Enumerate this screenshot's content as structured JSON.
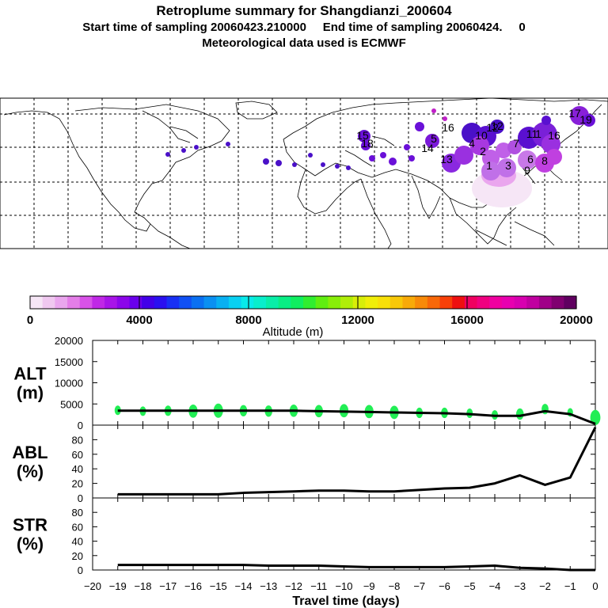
{
  "header": {
    "title": "Retroplume summary for Shangdianzi_200604",
    "sampling_line": "Start time of sampling 20060423.210000     End time of sampling 20060424.     0",
    "met_line": "Meteorological data used is ECMWF"
  },
  "colorbar": {
    "title": "Altitude (m)",
    "tick_labels": [
      "0",
      "4000",
      "8000",
      "12000",
      "16000",
      "20000"
    ],
    "colors": [
      "#f6e6f6",
      "#f0c8f0",
      "#eaa6ee",
      "#e47ee8",
      "#d852e8",
      "#c028e6",
      "#a814e8",
      "#8c06ea",
      "#6a00ec",
      "#4200e8",
      "#2a10f0",
      "#1830f4",
      "#1050f4",
      "#0a70f2",
      "#0a90f2",
      "#08b0f2",
      "#08d0f2",
      "#08eaea",
      "#08eecc",
      "#08eea8",
      "#08ee84",
      "#10ee60",
      "#30ee30",
      "#60ee10",
      "#88ee08",
      "#b0ee08",
      "#d8ee08",
      "#f0ee08",
      "#f8e008",
      "#f8c808",
      "#f8aa08",
      "#f88a08",
      "#f86808",
      "#f84008",
      "#ee1010",
      "#f00060",
      "#f00080",
      "#f000a0",
      "#e800b0",
      "#d800b0",
      "#c000a0",
      "#a00088",
      "#800070",
      "#600060"
    ]
  },
  "map": {
    "trajectory_labels": [
      "1",
      "2",
      "3",
      "4",
      "5",
      "6",
      "7",
      "8",
      "9",
      "10",
      "11",
      "12",
      "13",
      "14",
      "15",
      "16",
      "17",
      "18",
      "19"
    ]
  },
  "chart_data": [
    {
      "type": "line",
      "panel": "ALT",
      "ylabel": "ALT\n(m)",
      "ylabel_lines": [
        "ALT",
        "(m)"
      ],
      "ylim": [
        0,
        20000
      ],
      "yticks": [
        0,
        5000,
        10000,
        15000,
        20000
      ],
      "x": [
        -19,
        -18,
        -17,
        -16,
        -15,
        -14,
        -13,
        -12,
        -11,
        -10,
        -9,
        -8,
        -7,
        -6,
        -5,
        -4,
        -3,
        -2,
        -1,
        0
      ],
      "series": [
        {
          "name": "mean altitude",
          "values": [
            3400,
            3400,
            3400,
            3400,
            3400,
            3400,
            3400,
            3400,
            3300,
            3200,
            3100,
            3000,
            2900,
            2800,
            2600,
            2200,
            2200,
            3300,
            2600,
            300
          ]
        }
      ],
      "scatter": {
        "name": "altitude spread",
        "color": "#22ee55",
        "points": [
          {
            "x": -19,
            "y": 3500,
            "size": 1.0
          },
          {
            "x": -18,
            "y": 3300,
            "size": 1.0
          },
          {
            "x": -17,
            "y": 3400,
            "size": 1.1
          },
          {
            "x": -16,
            "y": 3300,
            "size": 1.4
          },
          {
            "x": -15,
            "y": 3400,
            "size": 1.5
          },
          {
            "x": -14,
            "y": 3400,
            "size": 1.2
          },
          {
            "x": -13,
            "y": 3300,
            "size": 1.2
          },
          {
            "x": -12,
            "y": 3400,
            "size": 1.3
          },
          {
            "x": -11,
            "y": 3300,
            "size": 1.3
          },
          {
            "x": -10,
            "y": 3400,
            "size": 1.4
          },
          {
            "x": -9,
            "y": 3200,
            "size": 1.4
          },
          {
            "x": -8,
            "y": 3000,
            "size": 1.4
          },
          {
            "x": -7,
            "y": 2900,
            "size": 1.1
          },
          {
            "x": -6,
            "y": 2900,
            "size": 1.1
          },
          {
            "x": -5,
            "y": 2800,
            "size": 1.0
          },
          {
            "x": -4,
            "y": 2400,
            "size": 1.0
          },
          {
            "x": -3,
            "y": 2600,
            "size": 1.2
          },
          {
            "x": -2,
            "y": 3800,
            "size": 1.1
          },
          {
            "x": -1,
            "y": 3000,
            "size": 0.9
          },
          {
            "x": 0,
            "y": 1800,
            "size": 1.6
          }
        ]
      }
    },
    {
      "type": "line",
      "panel": "ABL",
      "ylabel": "ABL\n(%)",
      "ylabel_lines": [
        "ABL",
        "(%)"
      ],
      "ylim": [
        0,
        100
      ],
      "yticks": [
        0,
        20,
        40,
        60,
        80
      ],
      "x": [
        -19,
        -18,
        -17,
        -16,
        -15,
        -14,
        -13,
        -12,
        -11,
        -10,
        -9,
        -8,
        -7,
        -6,
        -5,
        -4,
        -3,
        -2,
        -1,
        0
      ],
      "series": [
        {
          "name": "fraction in ABL",
          "values": [
            5,
            5,
            5,
            5,
            5,
            7,
            8,
            9,
            10,
            10,
            9,
            9,
            11,
            13,
            14,
            20,
            31,
            18,
            28,
            97
          ]
        }
      ]
    },
    {
      "type": "line",
      "panel": "STR",
      "ylabel": "STR\n(%)",
      "ylabel_lines": [
        "STR",
        "(%)"
      ],
      "ylim": [
        0,
        100
      ],
      "yticks": [
        0,
        20,
        40,
        60,
        80
      ],
      "x": [
        -19,
        -18,
        -17,
        -16,
        -15,
        -14,
        -13,
        -12,
        -11,
        -10,
        -9,
        -8,
        -7,
        -6,
        -5,
        -4,
        -3,
        -2,
        -1,
        0
      ],
      "series": [
        {
          "name": "fraction in stratosphere",
          "values": [
            7,
            7,
            7,
            7,
            7,
            7,
            6,
            6,
            6,
            5,
            4,
            4,
            4,
            4,
            5,
            6,
            3,
            2,
            0,
            0
          ]
        }
      ]
    }
  ],
  "xaxis": {
    "xlabel": "Travel time (days)",
    "xlim": [
      -20,
      0
    ],
    "tick_labels": [
      "−20",
      "−19",
      "−18",
      "−17",
      "−16",
      "−15",
      "−14",
      "−13",
      "−12",
      "−11",
      "−10",
      "−9",
      "−8",
      "−7",
      "−6",
      "−5",
      "−4",
      "−3",
      "−2",
      "−1",
      "0"
    ]
  }
}
